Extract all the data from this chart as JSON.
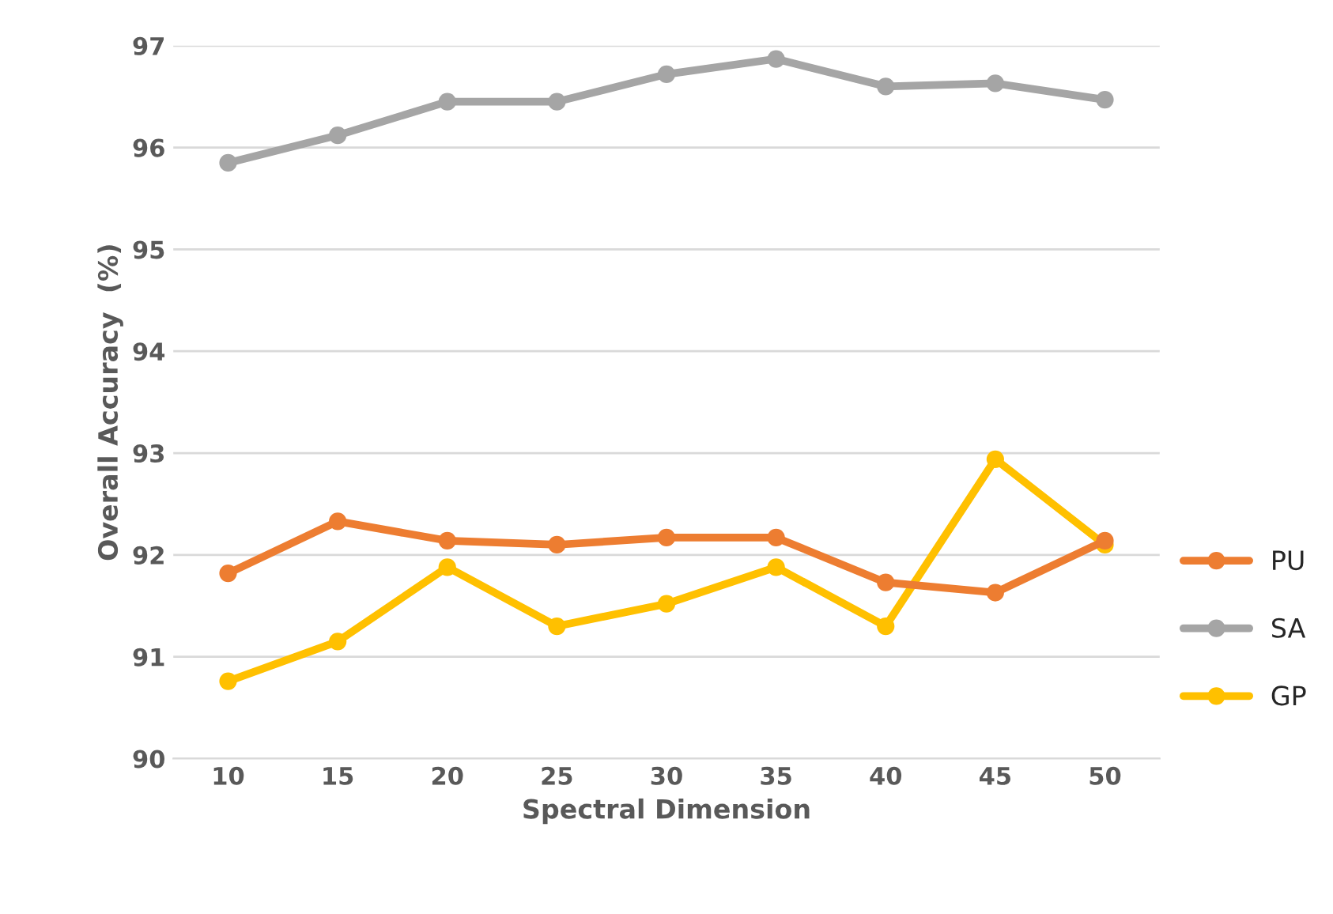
{
  "chart_data": {
    "type": "line",
    "xlabel": "Spectral Dimension",
    "ylabel": "Overall Accuracy  (%)",
    "categories": [
      "10",
      "15",
      "20",
      "25",
      "30",
      "35",
      "40",
      "45",
      "50"
    ],
    "series": [
      {
        "name": "PU",
        "color": "#ed7d31",
        "values": [
          91.82,
          92.33,
          92.14,
          92.1,
          92.17,
          92.17,
          91.73,
          91.63,
          92.14
        ]
      },
      {
        "name": "SA",
        "color": "#a5a5a5",
        "values": [
          95.85,
          96.12,
          96.45,
          96.45,
          96.72,
          96.87,
          96.6,
          96.63,
          96.47
        ]
      },
      {
        "name": "GP",
        "color": "#ffc000",
        "values": [
          90.76,
          91.15,
          91.88,
          91.3,
          91.52,
          91.88,
          91.3,
          92.94,
          92.1
        ]
      }
    ],
    "ylim": [
      90,
      97
    ],
    "yticks": [
      90,
      91,
      92,
      93,
      94,
      95,
      96,
      97
    ],
    "grid": "y",
    "legend": "right",
    "marker": "circle",
    "line_style": "solid"
  }
}
